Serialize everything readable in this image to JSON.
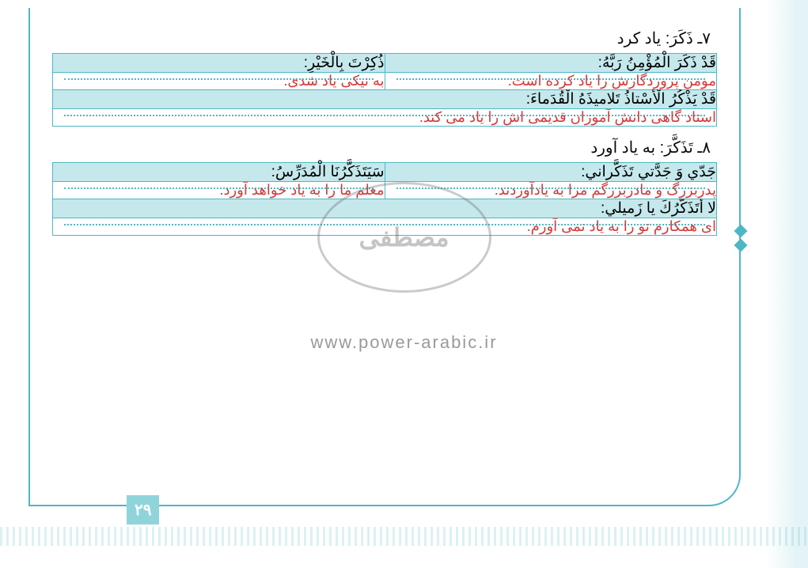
{
  "page_number": "۲۹",
  "watermark_url": "www.power-arabic.ir",
  "watermark_stamp": "مصطفی",
  "entries": [
    {
      "number": "۷",
      "title": "ذَکَرَ: یاد کرد",
      "pairs": [
        {
          "ar": "قَدْ ذَکَرَ الْمُؤْمِنُ رَبَّهُ:",
          "fa": "مومن پروردگارش را یاد کرده است."
        },
        {
          "ar": "ذُکِرْتَ بِالْخَیْرِ:",
          "fa": "به نیکی یاد شدی."
        }
      ],
      "full_rows": [
        {
          "ar": "قَدْ یَذْکُرُ الْأُسْتاذُ تَلامیذَهُ الْقُدَماءَ:",
          "fa": "استاد گاهی دانش آموزان قدیمی اش را یاد می کند."
        }
      ]
    },
    {
      "number": "۸",
      "title": "تَذَکَّرَ: به یاد آورد",
      "pairs": [
        {
          "ar": "جَدّي وَ جَدَّتي تَذَکَّراني:",
          "fa": "پدربزرگ و مادربزرگم مرا به یادآوردند."
        },
        {
          "ar": "سَیَتَذَکَّرُنَا الْمُدَرِّسُ:",
          "fa": "معلم ما را به یاد خواهد آورد."
        }
      ],
      "full_rows": [
        {
          "ar": "لا أَتَذَکَّرُكَ یا زَمیلي:",
          "fa": "ای همکارم تو را به یاد نمی آورم."
        }
      ]
    }
  ],
  "colors": {
    "border": "#4db8c4",
    "header_bg": "#c5e8ec",
    "answer_text": "#d63838",
    "title_text": "#0a0a0a"
  }
}
